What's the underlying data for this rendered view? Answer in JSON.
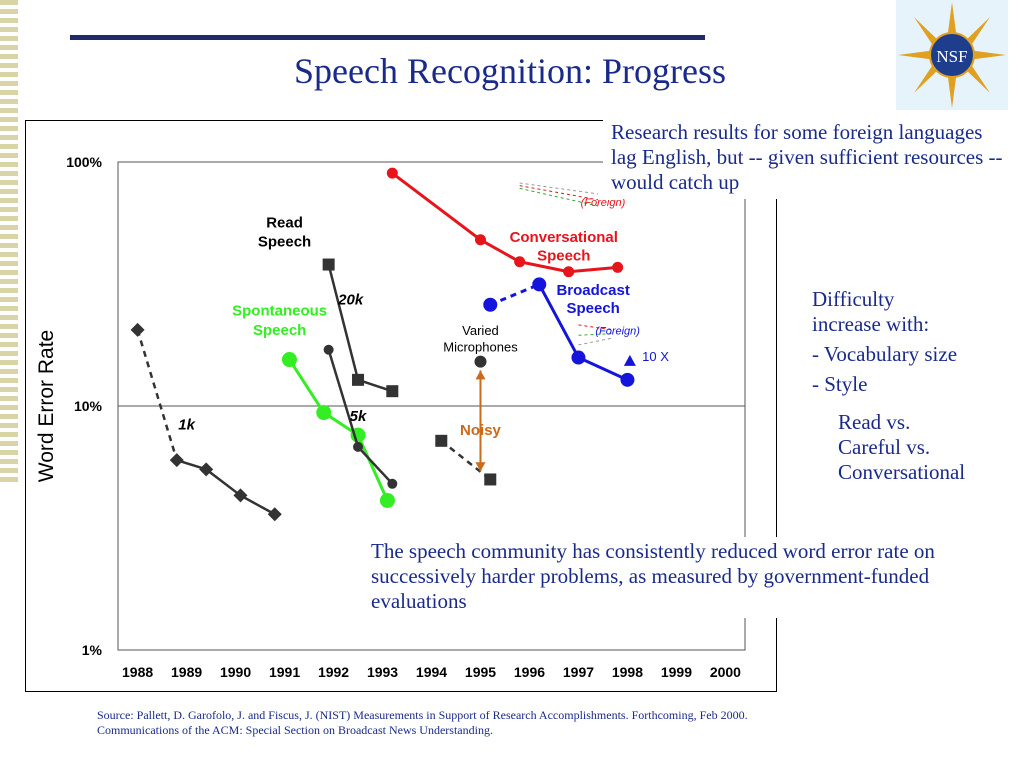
{
  "slide": {
    "title": "Speech Recognition: Progress",
    "logo_text": "NSF",
    "note_foreign": "Research results for some foreign languages lag English, but -- given sufficient resources -- would catch up",
    "difficulty_lines": [
      "Difficulty",
      "increase with:",
      "- Vocabulary size",
      "- Style"
    ],
    "style_lines": [
      "Read vs.",
      "Careful vs.",
      "Conversational"
    ],
    "note_community": "The speech community has consistently reduced word error rate on successively harder problems, as measured by government-funded evaluations",
    "source_lines": [
      "Source: Pallett, D. Garofolo, J. and Fiscus, J. (NIST) Measurements in Support of Research Accomplishments.  Forthcoming, Feb 2000.",
      "Communications of the ACM:  Special Section on Broadcast News Understanding."
    ]
  },
  "colors": {
    "title": "#1a2a8a",
    "red": "#e8141c",
    "green": "#33ee22",
    "blue": "#1414dd",
    "dark": "#333333",
    "orange": "#cc6a1a"
  },
  "chart_data": {
    "type": "line",
    "title": "",
    "ylabel": "Word Error Rate",
    "xlabel": "",
    "y_scale": "log",
    "ylim": [
      "1%",
      "100%"
    ],
    "y_ticks": [
      "100%",
      "10%",
      "1%"
    ],
    "x_ticks": [
      "1988",
      "1989",
      "1990",
      "1991",
      "1992",
      "1993",
      "1994",
      "1995",
      "1996",
      "1997",
      "1998",
      "1999",
      "2000"
    ],
    "series": [
      {
        "name": "1k",
        "color": "#333333",
        "marker": "diamond",
        "dash_first": true,
        "points": [
          [
            1988.0,
            20.5
          ],
          [
            1988.8,
            6.0
          ],
          [
            1989.4,
            5.5
          ],
          [
            1990.1,
            4.3
          ],
          [
            1990.8,
            3.6
          ]
        ]
      },
      {
        "name": "Spontaneous Speech",
        "color": "#33ee22",
        "marker": "circle",
        "dash_first": false,
        "points": [
          [
            1991.1,
            15.5
          ],
          [
            1991.8,
            9.4
          ],
          [
            1992.5,
            7.6
          ],
          [
            1993.1,
            4.1
          ]
        ]
      },
      {
        "name": "20k",
        "color": "#333333",
        "marker": "square",
        "dash_first": false,
        "points": [
          [
            1991.9,
            38
          ],
          [
            1992.5,
            12.8
          ],
          [
            1993.2,
            11.5
          ]
        ]
      },
      {
        "name": "5k",
        "color": "#333333",
        "marker": "circle-small",
        "dash_first": false,
        "points": [
          [
            1991.9,
            17
          ],
          [
            1992.5,
            6.8
          ],
          [
            1993.2,
            4.8
          ]
        ]
      },
      {
        "name": "Varied Microphones",
        "color": "#333333",
        "marker": "square",
        "dash_first": true,
        "points": [
          [
            1994.2,
            7.2
          ],
          [
            1995.2,
            5.0
          ]
        ]
      },
      {
        "name": "Conversational Speech",
        "color": "#e8141c",
        "marker": "circle",
        "dash_first": false,
        "points": [
          [
            1993.2,
            90
          ],
          [
            1995.0,
            48
          ],
          [
            1995.8,
            39
          ],
          [
            1996.8,
            35.5
          ],
          [
            1997.8,
            37
          ]
        ]
      },
      {
        "name": "Broadcast Speech",
        "color": "#1414dd",
        "marker": "circle-big",
        "dash_first": true,
        "points": [
          [
            1995.2,
            26
          ],
          [
            1996.2,
            31.5
          ],
          [
            1997.0,
            15.8
          ],
          [
            1998.0,
            12.8
          ]
        ]
      }
    ],
    "labels": [
      {
        "text": "Read",
        "x": 1991.0,
        "y": 54,
        "color": "#000000"
      },
      {
        "text": "Speech",
        "x": 1991.0,
        "y": 45,
        "color": "#000000"
      },
      {
        "text": "20k",
        "x": 1992.35,
        "y": 26,
        "color": "#000000"
      },
      {
        "text": "1k",
        "x": 1989.0,
        "y": 8.0,
        "color": "#000000"
      },
      {
        "text": "5k",
        "x": 1992.5,
        "y": 8.7,
        "color": "#000000"
      },
      {
        "text": "Spontaneous",
        "x": 1990.9,
        "y": 23.5,
        "color": "#33ee22"
      },
      {
        "text": "Speech",
        "x": 1990.9,
        "y": 19.5,
        "color": "#33ee22"
      },
      {
        "text": "Varied",
        "x": 1995.0,
        "y": 19.5,
        "color": "#000000"
      },
      {
        "text": "Microphones",
        "x": 1995.0,
        "y": 16.7,
        "color": "#000000"
      },
      {
        "text": "Noisy",
        "x": 1995.0,
        "y": 7.6,
        "color": "#cc6a1a"
      },
      {
        "text": "Conversational",
        "x": 1996.7,
        "y": 47,
        "color": "#e8141c"
      },
      {
        "text": "Speech",
        "x": 1996.7,
        "y": 39.5,
        "color": "#e8141c"
      },
      {
        "text": "Broadcast",
        "x": 1997.3,
        "y": 28.5,
        "color": "#1414dd"
      },
      {
        "text": "Speech",
        "x": 1997.3,
        "y": 24.0,
        "color": "#1414dd"
      },
      {
        "text": "(Foreign)",
        "x": 1997.5,
        "y": 66,
        "color": "#e8141c"
      },
      {
        "text": "(Foreign)",
        "x": 1997.8,
        "y": 19.6,
        "color": "#1414dd"
      },
      {
        "text": "10 X",
        "x": 1998.3,
        "y": 15.3,
        "color": "#1414dd"
      }
    ]
  }
}
